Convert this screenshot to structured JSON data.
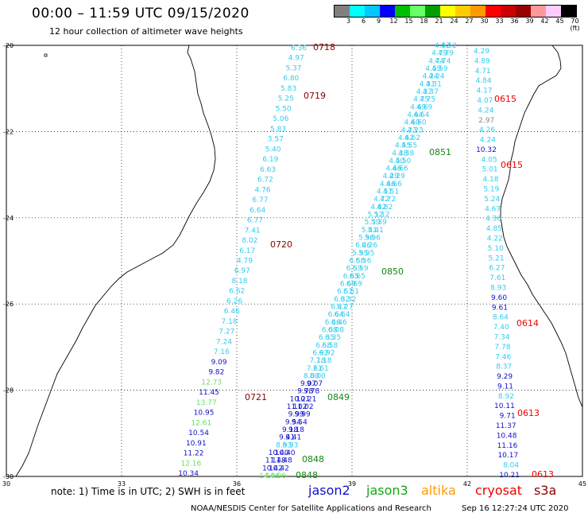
{
  "title": "00:00 – 11:59 UTC 09/15/2020",
  "subtitle": "12 hour collection of altimeter wave heights",
  "colorbar": {
    "colors": [
      "#808080",
      "#00ffff",
      "#00c8ff",
      "#0000ff",
      "#00c000",
      "#66ff66",
      "#00a000",
      "#ffff00",
      "#ffcc00",
      "#ff9900",
      "#ff0000",
      "#cc0000",
      "#990000",
      "#ff9999",
      "#ffccff",
      "#000000"
    ],
    "labels": [
      "3",
      "6",
      "9",
      "12",
      "15",
      "18",
      "21",
      "24",
      "27",
      "30",
      "33",
      "36",
      "39",
      "42",
      "45",
      "70 (ft)"
    ]
  },
  "colors": {
    "cyan": "#33ccee",
    "blue": "#1010cc",
    "lightgreen": "#66dd66",
    "green": "#118811",
    "red": "#ee0000",
    "darkred": "#880000",
    "gray": "#888888",
    "orange": "#ff9900"
  },
  "axes": {
    "lon_ticks": [
      "30",
      "33",
      "36",
      "39",
      "42",
      "45"
    ],
    "lat_ticks": [
      "-20",
      "-22",
      "-24",
      "-26",
      "-28",
      "-30"
    ]
  },
  "note": "note:  1) Time is in UTC;  2) SWH is in feet",
  "satellites": [
    {
      "label": "jason2",
      "color": "#1010cc"
    },
    {
      "label": "jason3",
      "color": "#11aa11"
    },
    {
      "label": "altika",
      "color": "#ff9900"
    },
    {
      "label": "cryosat",
      "color": "#ee0000"
    },
    {
      "label": "s3a",
      "color": "#880000"
    }
  ],
  "footer": "NOAA/NESDIS Center for Satellite Applications and Research",
  "footer_time": "Sep 16 12:27:24 UTC 2020",
  "track_s3a_left": {
    "color": "#33ccee",
    "values": [
      "6.36",
      "4.97",
      "5.37",
      "6.80",
      "5.83",
      "5.25",
      "5.50",
      "5.06",
      "5.83",
      "3.57",
      "5.40",
      "6.19",
      "6.63",
      "6.72",
      "4.76",
      "6.77",
      "6.64",
      "6.77",
      "7.41",
      "8.02",
      "6.17",
      "4.79",
      "6.97",
      "8.18",
      "6.62",
      "6.26",
      "6.46",
      "7.18",
      "7.27",
      "7.24",
      "7.16",
      "9.09",
      "9.82",
      "12.73",
      "11.45",
      "13.77",
      "10.95",
      "12.61",
      "10.54",
      "10.91",
      "11.22",
      "12.16",
      "10.34"
    ]
  },
  "track_cryosat_right": {
    "values": [
      "4.29",
      "4.89",
      "4.71",
      "4.84",
      "4.17",
      "4.07",
      "4.24",
      "2.97",
      "4.26",
      "4.24",
      "10.32",
      "4.05",
      "5.01",
      "4.18",
      "5.19",
      "5.24",
      "4.67",
      "4.36",
      "4.85",
      "4.22",
      "5.10",
      "5.21",
      "6.27",
      "7.61",
      "8.93",
      "9.60",
      "9.61",
      "8.64",
      "7.40",
      "7.34",
      "7.78",
      "7.46",
      "8.37",
      "9.29",
      "9.11",
      "8.92",
      "10.11",
      "9.71",
      "11.37",
      "10.48",
      "11.16",
      "10.17",
      "8.04",
      "10.21"
    ]
  },
  "time_labels": [
    {
      "text": "0718",
      "color": "#880000"
    },
    {
      "text": "0719",
      "color": "#880000"
    },
    {
      "text": "0720",
      "color": "#880000"
    },
    {
      "text": "0721",
      "color": "#880000"
    },
    {
      "text": "0615",
      "color": "#ee0000"
    },
    {
      "text": "0615",
      "color": "#ee0000"
    },
    {
      "text": "0614",
      "color": "#ee0000"
    },
    {
      "text": "0613",
      "color": "#ee0000"
    },
    {
      "text": "0613",
      "color": "#ee0000"
    },
    {
      "text": "0851",
      "color": "#118811"
    },
    {
      "text": "0850",
      "color": "#118811"
    },
    {
      "text": "0849",
      "color": "#118811"
    },
    {
      "text": "0848",
      "color": "#118811"
    },
    {
      "text": "0848",
      "color": "#118811"
    }
  ],
  "diag_track": {
    "values": [
      "4.52",
      "4.79",
      "4.74",
      "4.59",
      "4.24",
      "4.31",
      "4.37",
      "4.75",
      "4.69",
      "4.64",
      "4.60",
      "4.23",
      "4.62",
      "4.55",
      "4.38",
      "4.50",
      "4.66",
      "4.29",
      "4.66",
      "4.51",
      "4.72",
      "4.82",
      "5.12",
      "5.39",
      "5.41",
      "5.96",
      "6.26",
      "5.95",
      "6.56",
      "6.59",
      "6.65",
      "6.69",
      "6.51",
      "6.32",
      "6.27",
      "6.64",
      "6.46",
      "6.08",
      "6.35",
      "6.58",
      "6.92",
      "7.18",
      "7.61",
      "8.00",
      "9.07",
      "9.78",
      "10.21",
      "11.02",
      "9.99",
      "9.54",
      "9.18",
      "9.41",
      "8.93",
      "10.40",
      "11.48",
      "10.42",
      "14.06"
    ]
  }
}
